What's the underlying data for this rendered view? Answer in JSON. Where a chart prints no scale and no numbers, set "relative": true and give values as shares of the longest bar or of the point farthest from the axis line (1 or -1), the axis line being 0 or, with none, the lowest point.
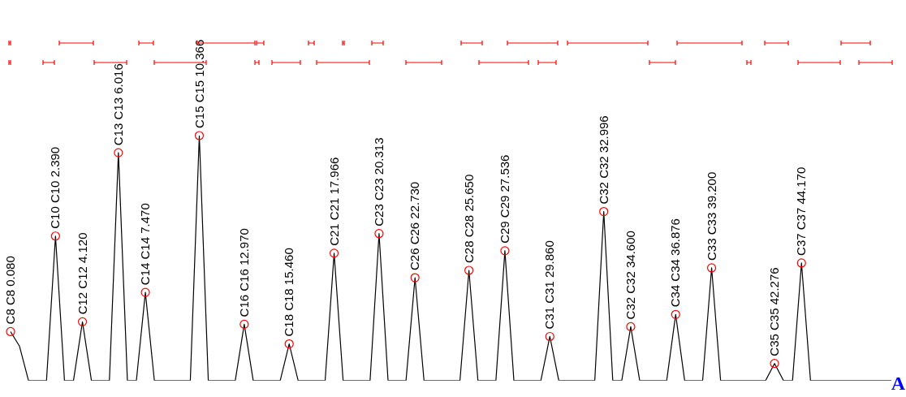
{
  "chart_data": {
    "type": "line",
    "relative": true,
    "categories": [
      null,
      null,
      null,
      null,
      null,
      null,
      null,
      null,
      null,
      null,
      null,
      null,
      null,
      null,
      null,
      null,
      null,
      null,
      null,
      null,
      null,
      null,
      null,
      null,
      null,
      null,
      null,
      null,
      null,
      null,
      null,
      null,
      null,
      null,
      null,
      null,
      null,
      null,
      null,
      null,
      null,
      null,
      null,
      null,
      null,
      null,
      null,
      null,
      null,
      null,
      null,
      null,
      null,
      null,
      null,
      null,
      null,
      null,
      null,
      null,
      null,
      null,
      null,
      null,
      null,
      null,
      null,
      null,
      null,
      null,
      null,
      null,
      null,
      null,
      null,
      null,
      null,
      null,
      null,
      null,
      null,
      null,
      null,
      null,
      null,
      null,
      null,
      null,
      null,
      null,
      null,
      null,
      null,
      null,
      null,
      null,
      null,
      null,
      null
    ],
    "series": [
      {
        "color": "#000000",
        "values": [
          0.2,
          0.14,
          0,
          0,
          0,
          0.59,
          0,
          0,
          0.24,
          0,
          0,
          0,
          0.93,
          0,
          0,
          0.36,
          0,
          0,
          0,
          0,
          0,
          1,
          0,
          0,
          0,
          0,
          0.23,
          0,
          0,
          0,
          0,
          0.15,
          0,
          0,
          0,
          0,
          0.52,
          0,
          0,
          0,
          0,
          0.6,
          0,
          0,
          0,
          0.42,
          0,
          0,
          0,
          0,
          0,
          0.45,
          0,
          0,
          0,
          0.53,
          0,
          0,
          0,
          0,
          0.18,
          0,
          0,
          0,
          0,
          0,
          0.69,
          0,
          0,
          0.22,
          0,
          0,
          0,
          0,
          0.27,
          0,
          0,
          0,
          0.46,
          0,
          0,
          0,
          0,
          0,
          0,
          0.07,
          0,
          0,
          0.48,
          0,
          0,
          0,
          0,
          0,
          0,
          0,
          0,
          0,
          0
        ]
      }
    ],
    "annotations": [
      {
        "text": "C8 C8 0.080",
        "y": 0.2
      },
      {
        "text": "C10 C10 2.390",
        "y": 0.59
      },
      {
        "text": "C12 C12 4.120",
        "y": 0.24
      },
      {
        "text": "C13 C13 6.016",
        "y": 0.93
      },
      {
        "text": "C14 C14 7.470",
        "y": 0.36
      },
      {
        "text": "C15 C15 10.366",
        "y": 1
      },
      {
        "text": "C16 C16 12.970",
        "y": 0.23
      },
      {
        "text": "C18 C18 15.460",
        "y": 0.15
      },
      {
        "text": "C21 C21 17.966",
        "y": 0.52
      },
      {
        "text": "C23 C23 20.313",
        "y": 0.6
      },
      {
        "text": "C26 C26 22.730",
        "y": 0.42
      },
      {
        "text": "C28 C28 25.650",
        "y": 0.45
      },
      {
        "text": "C29 C29 27.536",
        "y": 0.53
      },
      {
        "text": "C31 C31 29.860",
        "y": 0.18
      },
      {
        "text": "C32 C32 32.996",
        "y": 0.69
      },
      {
        "text": "C32 C32 34.600",
        "y": 0.22
      },
      {
        "text": "C34 C34 36.876",
        "y": 0.27
      },
      {
        "text": "C33 C33 39.200",
        "y": 0.46
      },
      {
        "text": "C35 C35 42.276",
        "y": 0.07
      },
      {
        "text": "C37 C37 44.170",
        "y": 0.48
      },
      "A"
    ]
  }
}
